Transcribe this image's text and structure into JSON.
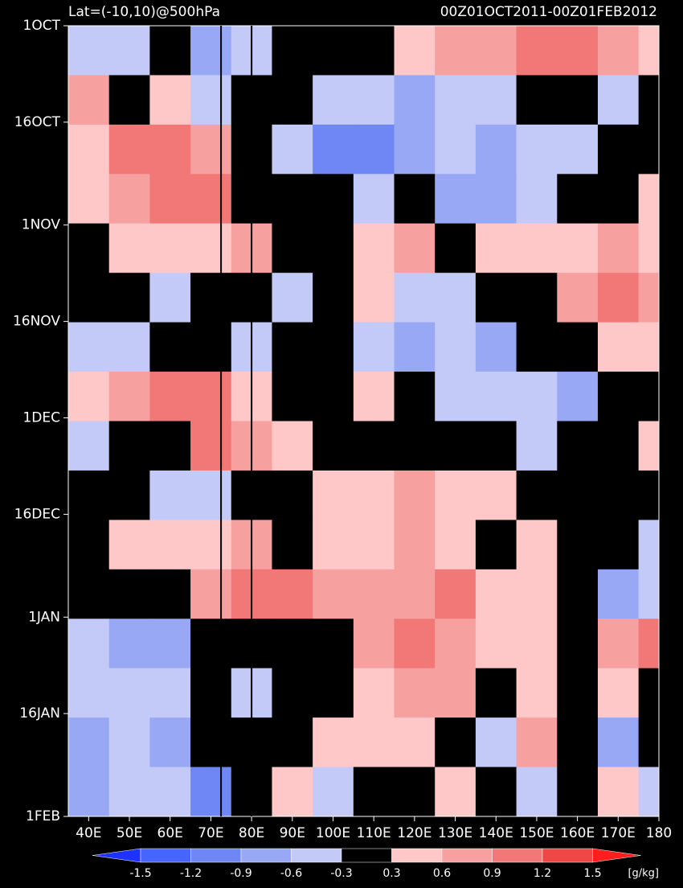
{
  "chart_data": {
    "type": "heatmap",
    "title": "Lat=(-10,10)@500hPa",
    "subtitle": "00Z01OCT2011-00Z01FEB2012",
    "x": [
      40,
      50,
      60,
      70,
      80,
      90,
      100,
      110,
      120,
      130,
      140,
      150,
      160,
      170,
      180
    ],
    "xlim": [
      35,
      180
    ],
    "xticks": [
      {
        "value": 40,
        "label": "40E"
      },
      {
        "value": 50,
        "label": "50E"
      },
      {
        "value": 60,
        "label": "60E"
      },
      {
        "value": 70,
        "label": "70E"
      },
      {
        "value": 80,
        "label": "80E"
      },
      {
        "value": 90,
        "label": "90E"
      },
      {
        "value": 100,
        "label": "100E"
      },
      {
        "value": 110,
        "label": "110E"
      },
      {
        "value": 120,
        "label": "120E"
      },
      {
        "value": 130,
        "label": "130E"
      },
      {
        "value": 140,
        "label": "140E"
      },
      {
        "value": 150,
        "label": "150E"
      },
      {
        "value": 160,
        "label": "160E"
      },
      {
        "value": 170,
        "label": "170E"
      },
      {
        "value": 180,
        "label": "180"
      }
    ],
    "ylim": [
      0,
      123
    ],
    "yticks": [
      {
        "value": 0,
        "label": "1OCT"
      },
      {
        "value": 15,
        "label": "16OCT"
      },
      {
        "value": 31,
        "label": "1NOV"
      },
      {
        "value": 46,
        "label": "16NOV"
      },
      {
        "value": 61,
        "label": "1DEC"
      },
      {
        "value": 76,
        "label": "16DEC"
      },
      {
        "value": 92,
        "label": "1JAN"
      },
      {
        "value": 107,
        "label": "16JAN"
      },
      {
        "value": 123,
        "label": "1FEB"
      }
    ],
    "vlines": [
      72.5,
      80
    ],
    "values": [
      [
        -0.6,
        -0.5,
        -0.3,
        -0.7,
        -0.5,
        -0.1,
        0.0,
        0.2,
        0.4,
        0.6,
        0.8,
        1.1,
        1.0,
        0.6,
        0.4
      ],
      [
        0.8,
        -0.2,
        0.5,
        -0.4,
        -0.2,
        0.1,
        -0.5,
        -0.6,
        -0.7,
        -0.4,
        -0.5,
        -0.3,
        0.1,
        -0.4,
        -0.2
      ],
      [
        0.3,
        0.9,
        1.1,
        0.8,
        -0.1,
        -0.4,
        -1.0,
        -1.2,
        -0.9,
        -0.6,
        -0.7,
        -0.5,
        -0.4,
        -0.3,
        0.2
      ],
      [
        0.5,
        0.7,
        0.9,
        1.0,
        0.0,
        0.2,
        -0.3,
        -0.5,
        0.1,
        -0.7,
        -0.8,
        -0.4,
        -0.2,
        0.1,
        0.3
      ],
      [
        0.1,
        0.4,
        0.5,
        0.3,
        0.6,
        0.2,
        0.0,
        0.3,
        0.6,
        0.1,
        0.4,
        0.3,
        0.5,
        0.7,
        0.4
      ],
      [
        0.0,
        -0.2,
        -0.4,
        -0.1,
        0.1,
        -0.6,
        0.2,
        0.4,
        -0.5,
        -0.6,
        -0.1,
        0.2,
        0.8,
        0.9,
        0.7
      ],
      [
        -0.4,
        -0.6,
        -0.1,
        -0.3,
        -0.5,
        0.0,
        -0.2,
        -0.4,
        -0.7,
        -0.5,
        -0.8,
        -0.3,
        0.2,
        0.4,
        0.3
      ],
      [
        0.3,
        0.8,
        1.0,
        1.1,
        0.4,
        -0.2,
        0.1,
        0.3,
        -0.3,
        -0.6,
        -0.4,
        -0.5,
        -0.7,
        -0.2,
        0.1
      ],
      [
        -0.4,
        0.2,
        0.1,
        0.9,
        0.8,
        0.3,
        0.0,
        0.1,
        0.2,
        0.1,
        -0.2,
        -0.4,
        0.1,
        0.2,
        0.5
      ],
      [
        0.0,
        -0.2,
        -0.5,
        -0.6,
        0.0,
        -0.1,
        0.3,
        0.5,
        0.7,
        0.4,
        0.3,
        0.1,
        -0.3,
        0.2,
        0.1
      ],
      [
        0.2,
        0.3,
        0.4,
        0.5,
        0.7,
        0.2,
        0.5,
        0.4,
        0.6,
        0.3,
        0.2,
        0.4,
        0.1,
        -0.2,
        -0.4
      ],
      [
        -0.3,
        0.1,
        0.2,
        0.8,
        1.0,
        0.9,
        0.7,
        0.8,
        0.6,
        1.1,
        0.4,
        0.5,
        0.2,
        -0.8,
        -0.6
      ],
      [
        -0.4,
        -0.9,
        -0.7,
        -0.3,
        0.0,
        -0.2,
        0.2,
        0.6,
        0.9,
        0.6,
        0.5,
        0.3,
        0.2,
        0.8,
        1.0
      ],
      [
        -0.5,
        -0.6,
        -0.4,
        -0.2,
        -0.5,
        0.0,
        0.2,
        0.5,
        0.7,
        0.6,
        0.2,
        0.4,
        -0.1,
        0.3,
        0.2
      ],
      [
        -0.7,
        -0.5,
        -0.8,
        0.0,
        0.1,
        -0.3,
        0.4,
        0.5,
        0.3,
        0.2,
        -0.4,
        0.6,
        -0.3,
        -0.9,
        -0.3
      ],
      [
        -0.9,
        -0.6,
        -0.4,
        -1.1,
        -0.2,
        0.3,
        -0.4,
        0.2,
        0.1,
        0.3,
        -0.2,
        -0.5,
        -0.3,
        0.4,
        -0.4
      ]
    ],
    "levels": [
      -1.5,
      -1.2,
      -0.9,
      -0.6,
      -0.3,
      0.3,
      0.6,
      0.9,
      1.2,
      1.5
    ],
    "colors": [
      "#1e32ff",
      "#4664ff",
      "#6e87f5",
      "#98a8f5",
      "#c4caf7",
      "#000000",
      "#ffc8c8",
      "#f7a0a0",
      "#f27878",
      "#f04646",
      "#ff1e1e"
    ],
    "unit": "[g/kg]"
  }
}
